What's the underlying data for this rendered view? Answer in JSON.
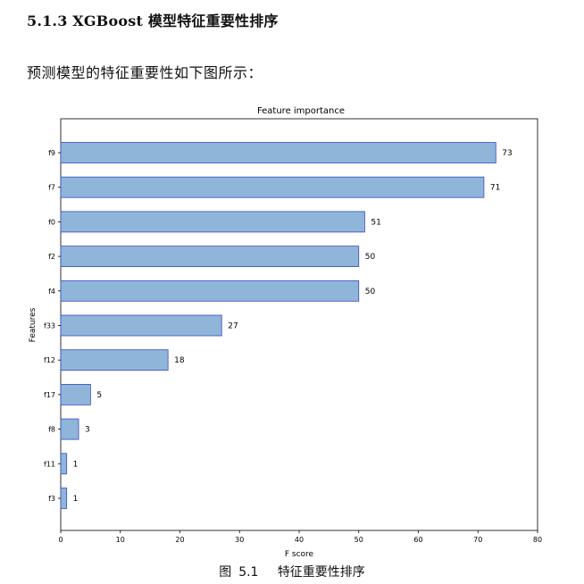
{
  "document": {
    "section_heading": "5.1.3 XGBoost 模型特征重要性排序",
    "intro": "预测模型的特征重要性如下图所示：",
    "caption_prefix": "图",
    "caption_number": "5.1",
    "caption_title": "特征重要性排序"
  },
  "chart_data": {
    "type": "bar",
    "orientation": "horizontal",
    "title": "Feature importance",
    "xlabel": "F score",
    "ylabel": "Features",
    "categories": [
      "f9",
      "f7",
      "f0",
      "f2",
      "f4",
      "f33",
      "f12",
      "f17",
      "f8",
      "f11",
      "f3"
    ],
    "values": [
      73,
      71,
      51,
      50,
      50,
      27,
      18,
      5,
      3,
      1,
      1
    ],
    "data_labels": [
      "73",
      "71",
      "51",
      "50",
      "50",
      "27",
      "18",
      "5",
      "3",
      "1",
      "1"
    ],
    "xlim": [
      0,
      80
    ],
    "xticks": [
      0,
      10,
      20,
      30,
      40,
      50,
      60,
      70,
      80
    ],
    "grid": false,
    "colors": {
      "bar_fill": "#8fb5d9",
      "bar_edge": "#3b49c4",
      "axes": "#000000"
    }
  }
}
